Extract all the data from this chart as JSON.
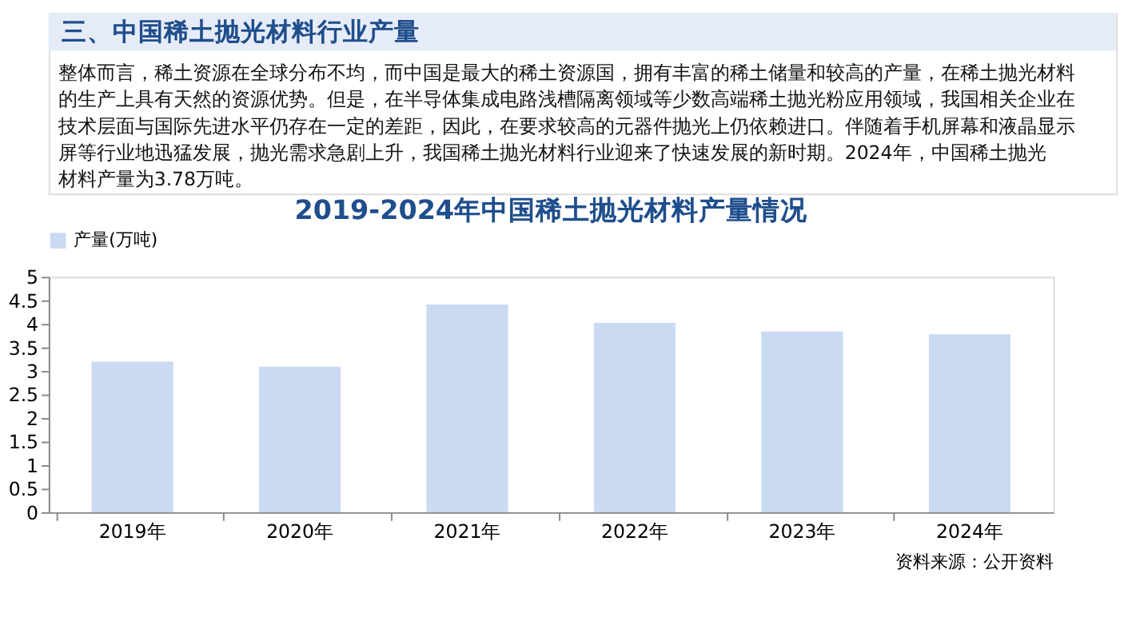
{
  "chart_data": {
    "type": "bar",
    "title": "2019-2024年中国稀土抛光材料产量情况",
    "categories": [
      "2019年",
      "2020年",
      "2021年",
      "2022年",
      "2023年",
      "2024年"
    ],
    "series": [
      {
        "name": "产量(万吨)",
        "color": "#c9daf2",
        "values": [
          3.2,
          3.09,
          4.41,
          4.02,
          3.84,
          3.78
        ]
      }
    ],
    "ylim": [
      0,
      5
    ],
    "yticks": [
      0,
      0.5,
      1,
      1.5,
      2,
      2.5,
      3,
      3.5,
      4,
      4.5,
      5
    ],
    "grid": false,
    "legend": "top",
    "annotations": [
      "三、中国稀土抛光材料行业产量",
      "整体而言，稀土资源在全球分布不均，而中国是最大的稀土资源国，拥有丰富的稀土储量和较高的产量，在稀土抛光材料的生产上具有天然的资源优势。但是，在半导体集成电路浅槽隔离领域等少数高端稀土抛光粉应用领域，我国相关企业在技术层面与国际先进水平仍存在一定的差距，因此，在要求较高的元器件抛光上仍依赖进口。伴随着手机屏幕和液晶显示屏等行业地迅猛发展，抛光需求急剧上升，我国稀土抛光材料行业迎来了快速发展的新时期。2024年，中国稀土抛光材料产量为3.78万吨。",
      "资料来源：公开资料"
    ]
  }
}
